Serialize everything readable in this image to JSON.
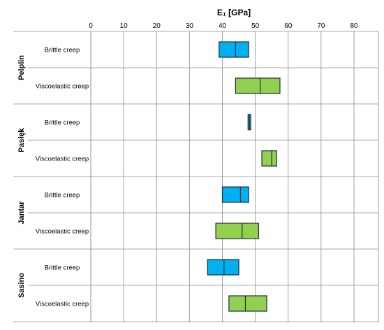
{
  "chart_data": {
    "type": "box",
    "title": "E₁ [GPa]",
    "xlim": [
      0,
      80
    ],
    "xticks": [
      0,
      10,
      20,
      30,
      40,
      50,
      60,
      70,
      80
    ],
    "grid": true,
    "colors": {
      "Brittle creep": "#00b0f0",
      "Viscoelastic creep": "#92d050",
      "edge": "#1f2d3d"
    },
    "groups": [
      {
        "name": "Pelplin",
        "rows": [
          {
            "label": "Brittle creep",
            "low": 39,
            "median": 44,
            "high": 48
          },
          {
            "label": "Viscoelastic creep",
            "low": 44,
            "median": 51.5,
            "high": 57.5
          }
        ]
      },
      {
        "name": "Pasłęk",
        "rows": [
          {
            "label": "Brittle creep",
            "low": 47.8,
            "median": 48.2,
            "high": 48.6
          },
          {
            "label": "Viscoelastic creep",
            "low": 52,
            "median": 55,
            "high": 56.5
          }
        ]
      },
      {
        "name": "Jantar",
        "rows": [
          {
            "label": "Brittle creep",
            "low": 40,
            "median": 45.5,
            "high": 48
          },
          {
            "label": "Viscoelastic creep",
            "low": 38,
            "median": 46,
            "high": 51
          }
        ]
      },
      {
        "name": "Sasino",
        "rows": [
          {
            "label": "Brittle creep",
            "low": 35.5,
            "median": 40.5,
            "high": 45
          },
          {
            "label": "Viscoelastic creep",
            "low": 42,
            "median": 47,
            "high": 53.5
          }
        ]
      }
    ]
  }
}
